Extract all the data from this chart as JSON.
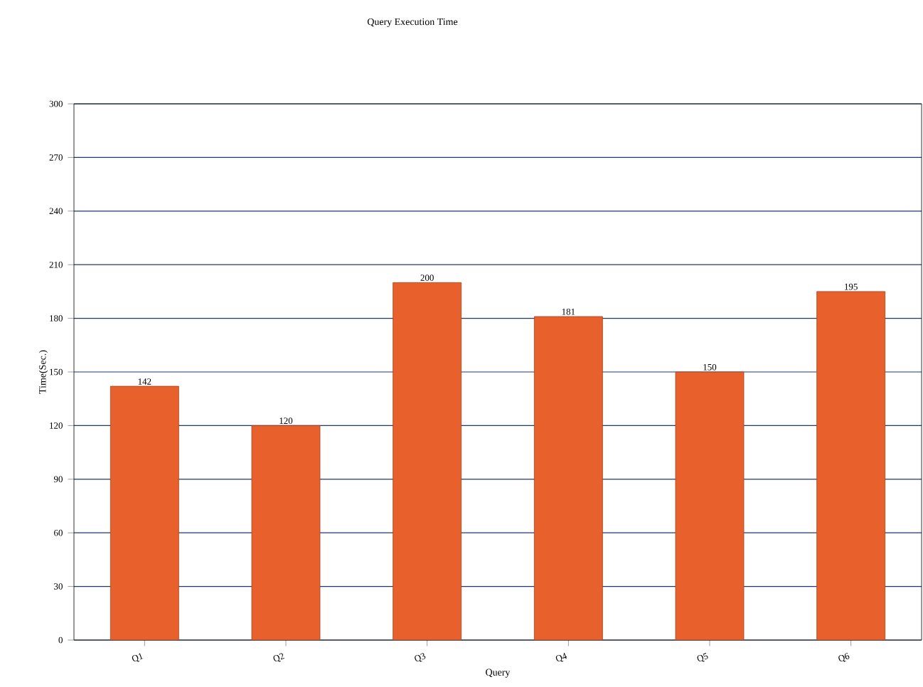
{
  "chart_data": {
    "type": "bar",
    "title": "Query Execution Time",
    "xlabel": "Query",
    "ylabel": "Time(Sec.)",
    "categories": [
      "Q1",
      "Q2",
      "Q3",
      "Q4",
      "Q5",
      "Q6"
    ],
    "values": [
      142,
      120,
      200,
      181,
      150,
      195
    ],
    "color": "#e8602c",
    "ylim": [
      0,
      300
    ],
    "yticks": [
      0,
      30,
      60,
      90,
      120,
      150,
      180,
      210,
      240,
      270,
      300
    ],
    "grid": "y",
    "data_labels": true
  }
}
